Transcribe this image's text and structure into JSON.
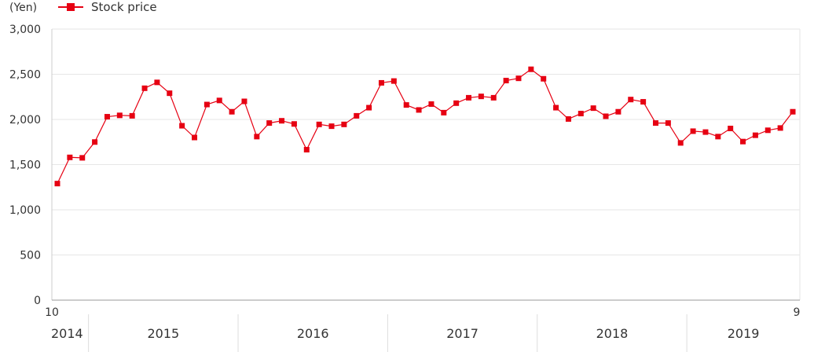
{
  "chart_data": {
    "type": "line",
    "unit_label": "(Yen)",
    "title": "",
    "xlabel": "",
    "ylabel": "",
    "ylim": [
      0,
      3000
    ],
    "y_ticks": [
      "0",
      "500",
      "1,000",
      "1,500",
      "2,000",
      "2,500",
      "3,000"
    ],
    "y_tick_values": [
      0,
      500,
      1000,
      1500,
      2000,
      2500,
      3000
    ],
    "start_month_label": "10",
    "end_month_label": "9",
    "x_start": "2014-10",
    "x_end": "2019-09",
    "years": [
      "2014",
      "2015",
      "2016",
      "2017",
      "2018",
      "2019"
    ],
    "grid": true,
    "legend_position": "top-left",
    "series": [
      {
        "name": "Stock price",
        "color": "#e60012",
        "marker": "square",
        "values": [
          1290,
          1580,
          1575,
          1750,
          2030,
          2045,
          2040,
          2345,
          2410,
          2290,
          1930,
          1800,
          2165,
          2210,
          2085,
          2200,
          1810,
          1960,
          1985,
          1950,
          1665,
          1945,
          1925,
          1945,
          2040,
          2130,
          2405,
          2425,
          2160,
          2105,
          2170,
          2075,
          2180,
          2240,
          2255,
          2240,
          2430,
          2455,
          2555,
          2450,
          2130,
          2005,
          2065,
          2125,
          2035,
          2085,
          2220,
          2195,
          1960,
          1960,
          1740,
          1870,
          1860,
          1810,
          1900,
          1755,
          1825,
          1880,
          1905,
          2085
        ]
      }
    ]
  }
}
